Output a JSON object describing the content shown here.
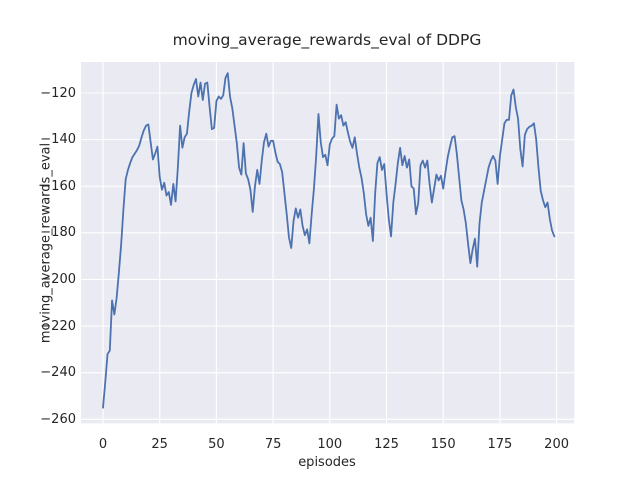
{
  "chart_data": {
    "type": "line",
    "title": "moving_average_rewards_eval of DDPG",
    "xlabel": "episodes",
    "ylabel": "moving_average_rewards_eval",
    "xlim": [
      -9.7,
      207.8
    ],
    "ylim": [
      -261.7,
      -106.7
    ],
    "x_ticks": [
      0,
      25,
      50,
      75,
      100,
      125,
      150,
      175,
      200
    ],
    "y_ticks": [
      -260,
      -240,
      -220,
      -200,
      -180,
      -160,
      -140,
      -120
    ],
    "grid": true,
    "legend": "none",
    "plot_background": "#eaeaf2",
    "grid_color": "#ffffff",
    "text_color": "#262626",
    "line_color": "#4c72b0",
    "series": [
      {
        "name": "moving_average_rewards_eval",
        "color": "#4c72b0",
        "x_start": 0,
        "x_step": 1,
        "y": [
          -255,
          -244,
          -232,
          -230.5,
          -209,
          -215,
          -208,
          -197,
          -185,
          -170,
          -157,
          -153,
          -150,
          -147.5,
          -146,
          -144.5,
          -142.5,
          -139,
          -136,
          -134,
          -133.5,
          -141,
          -148.5,
          -146,
          -143,
          -156,
          -161.5,
          -158.5,
          -164,
          -162.5,
          -168,
          -159,
          -166.5,
          -152,
          -134,
          -143.5,
          -139,
          -137.5,
          -128,
          -120,
          -116.5,
          -114,
          -121.5,
          -115.5,
          -123,
          -116,
          -115.5,
          -126,
          -135.5,
          -135,
          -123.5,
          -121.5,
          -122.5,
          -121,
          -113.5,
          -111.5,
          -121.5,
          -126.5,
          -134,
          -141.5,
          -152,
          -155,
          -141.5,
          -154.5,
          -157,
          -161.5,
          -171,
          -160,
          -153,
          -159,
          -149,
          -141,
          -137.5,
          -143,
          -140.5,
          -140.5,
          -145.5,
          -149.5,
          -150.5,
          -154,
          -163,
          -172,
          -182,
          -186.5,
          -175,
          -169.5,
          -173.5,
          -170,
          -177,
          -181,
          -178.5,
          -184.5,
          -172,
          -161,
          -147,
          -129,
          -141,
          -147.5,
          -146.5,
          -151,
          -142,
          -139.5,
          -138.5,
          -125,
          -131,
          -129.5,
          -134,
          -132.5,
          -137,
          -141,
          -143.5,
          -139,
          -146,
          -152,
          -156.5,
          -163,
          -172,
          -177,
          -173.5,
          -183.5,
          -163,
          -150,
          -147.5,
          -153,
          -150.5,
          -163,
          -174,
          -181.5,
          -167,
          -159,
          -150,
          -143.5,
          -151,
          -147,
          -152,
          -148.5,
          -160,
          -161,
          -172,
          -167,
          -151,
          -149,
          -152,
          -149,
          -159,
          -167,
          -161,
          -155,
          -157.5,
          -155.5,
          -161,
          -154,
          -147.5,
          -143,
          -139,
          -138.5,
          -146,
          -156,
          -166,
          -170,
          -176,
          -185,
          -193,
          -187,
          -182.5,
          -194.5,
          -176,
          -167,
          -162,
          -157,
          -152,
          -149,
          -147,
          -149,
          -159,
          -147,
          -140,
          -133,
          -131.5,
          -131.5,
          -121,
          -118.5,
          -126,
          -131,
          -144,
          -151.5,
          -138,
          -135.5,
          -134.5,
          -134,
          -133,
          -140,
          -152,
          -162,
          -166,
          -169,
          -167,
          -174,
          -179,
          -181.5
        ]
      }
    ]
  }
}
